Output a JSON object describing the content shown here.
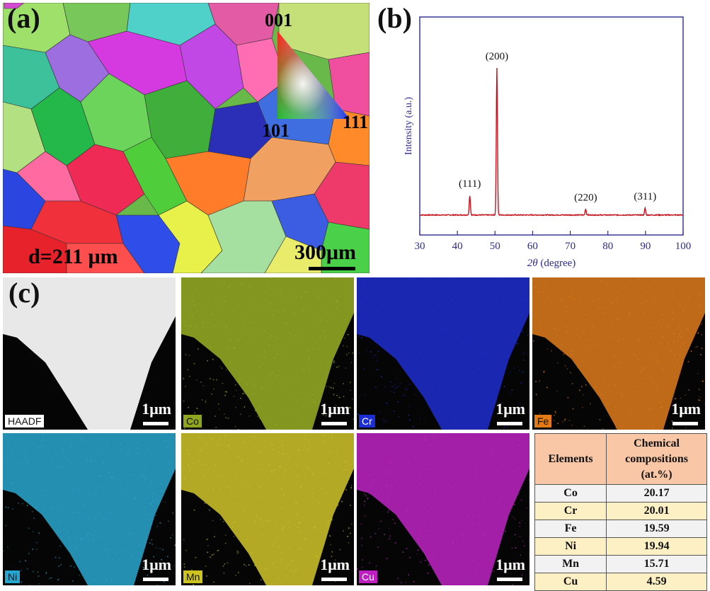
{
  "figure": {
    "panel_a": {
      "label": "(a)",
      "ipf_001": "001",
      "ipf_101": "101",
      "ipf_111": "111",
      "grain_size": "d=211 μm",
      "scale": "300μm"
    },
    "panel_b": {
      "label": "(b)"
    },
    "panel_c": {
      "label": "(c)",
      "maps": [
        {
          "element": "HAADF",
          "scale": "1μm",
          "color": "#e8e8e8",
          "label_bg": "#ffffff",
          "label_fg": "#111111"
        },
        {
          "element": "Co",
          "scale": "1μm",
          "color": "#9ab024",
          "label_bg": "#8fa41f",
          "label_fg": "#111111"
        },
        {
          "element": "Cr",
          "scale": "1μm",
          "color": "#1f2fd0",
          "label_bg": "#1c2fd6",
          "label_fg": "#ffffff"
        },
        {
          "element": "Fe",
          "scale": "1μm",
          "color": "#e07d1c",
          "label_bg": "#e47a14",
          "label_fg": "#111111"
        },
        {
          "element": "Ni",
          "scale": "1μm",
          "color": "#2aa8d0",
          "label_bg": "#23a6d2",
          "label_fg": "#111111"
        },
        {
          "element": "Mn",
          "scale": "1μm",
          "color": "#d2c72a",
          "label_bg": "#cfc31f",
          "label_fg": "#111111"
        },
        {
          "element": "Cu",
          "scale": "1μm",
          "color": "#c024c4",
          "label_bg": "#bf1fc2",
          "label_fg": "#ffffff"
        }
      ],
      "table": {
        "header_col1": "Elements",
        "header_col2_line1": "Chemical",
        "header_col2_line2": "compositions",
        "header_col2_line3": "(at.%)",
        "rows": [
          {
            "element": "Co",
            "value": "20.17"
          },
          {
            "element": "Cr",
            "value": "20.01"
          },
          {
            "element": "Fe",
            "value": "19.59"
          },
          {
            "element": "Ni",
            "value": "19.94"
          },
          {
            "element": "Mn",
            "value": "15.71"
          },
          {
            "element": "Cu",
            "value": "4.59"
          }
        ]
      }
    }
  },
  "chart_data": {
    "type": "line",
    "xlabel": "2θ (degree)",
    "ylabel": "Intensity (a.u.)",
    "xlim": [
      30,
      100
    ],
    "x_ticks": [
      "30",
      "40",
      "50",
      "60",
      "70",
      "80",
      "90",
      "100"
    ],
    "grid": false,
    "line_color": "#c8141e",
    "axis_color": "#2b2b8f",
    "series": [
      {
        "values": [
          [
            30,
            0.02
          ],
          [
            43.3,
            0.15
          ],
          [
            50.5,
            1.0
          ],
          [
            74.1,
            0.06
          ],
          [
            89.9,
            0.065
          ],
          [
            100,
            0.02
          ]
        ]
      }
    ],
    "annotations": [
      {
        "text": "(111)",
        "x": 43.3,
        "y": 0.15
      },
      {
        "text": "(200)",
        "x": 50.5,
        "y": 1.0
      },
      {
        "text": "(220)",
        "x": 74.1,
        "y": 0.06
      },
      {
        "text": "(311)",
        "x": 89.9,
        "y": 0.065
      }
    ]
  }
}
